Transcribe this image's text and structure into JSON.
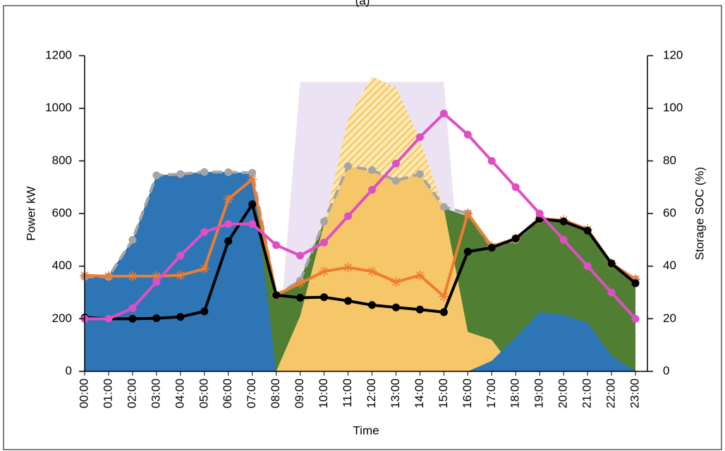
{
  "chart_data": {
    "type": "combo",
    "title": "(a)",
    "x_label": "Time",
    "y_label": "Power kW",
    "y2_label": "Storage SOC (%)",
    "categories": [
      "00:00",
      "01:00",
      "02:00",
      "03:00",
      "04:00",
      "05:00",
      "06:00",
      "07:00",
      "08:00",
      "09:00",
      "10:00",
      "11:00",
      "12:00",
      "13:00",
      "14:00",
      "15:00",
      "16:00",
      "17:00",
      "18:00",
      "19:00",
      "20:00",
      "21:00",
      "22:00",
      "23:00"
    ],
    "ylim": [
      0,
      1200
    ],
    "yticks": [
      0,
      200,
      400,
      600,
      800,
      1000,
      1200
    ],
    "y2lim": [
      0,
      120
    ],
    "y2ticks": [
      0,
      20,
      40,
      60,
      80,
      100,
      120
    ],
    "series": [
      {
        "type": "area",
        "color": "#ebe3f3",
        "values": [
          null,
          null,
          null,
          null,
          null,
          null,
          null,
          null,
          0,
          1100,
          1100,
          1100,
          1100,
          1100,
          1100,
          1100,
          0,
          null,
          null,
          null,
          null,
          null,
          null,
          null
        ]
      },
      {
        "type": "area",
        "color": "#507e32",
        "values": [
          360,
          360,
          500,
          745,
          750,
          758,
          757,
          750,
          290,
          350,
          570,
          780,
          765,
          725,
          750,
          620,
          590,
          470,
          500,
          580,
          570,
          540,
          410,
          350
        ]
      },
      {
        "type": "area",
        "color": "#f4b942",
        "pattern": true,
        "values": [
          null,
          null,
          null,
          null,
          null,
          null,
          null,
          null,
          0,
          210,
          560,
          960,
          1120,
          1080,
          880,
          620,
          null,
          null,
          null,
          null,
          null,
          null,
          null,
          null
        ]
      },
      {
        "type": "area",
        "color": "#f5c768",
        "values": [
          null,
          null,
          null,
          null,
          null,
          null,
          null,
          null,
          0,
          210,
          560,
          780,
          765,
          725,
          750,
          620,
          150,
          120,
          0,
          null,
          null,
          null,
          null,
          null
        ]
      },
      {
        "type": "area",
        "color": "#2e75b6",
        "values": [
          365,
          365,
          500,
          745,
          750,
          758,
          757,
          755,
          0,
          null,
          null,
          null,
          null,
          null,
          null,
          null,
          0,
          40,
          130,
          225,
          215,
          185,
          60,
          0
        ]
      },
      {
        "type": "line",
        "color": "#a5a5a5",
        "dash": true,
        "marker": "circle",
        "values": [
          360,
          360,
          500,
          745,
          750,
          758,
          757,
          755,
          290,
          345,
          570,
          780,
          765,
          725,
          750,
          625,
          600,
          470,
          500,
          580,
          570,
          535,
          410,
          350
        ]
      },
      {
        "type": "line",
        "color": "#ed7d31",
        "marker": "star",
        "values": [
          365,
          362,
          362,
          362,
          365,
          390,
          655,
          730,
          290,
          335,
          380,
          395,
          380,
          340,
          365,
          285,
          600,
          475,
          505,
          580,
          575,
          540,
          410,
          350
        ]
      },
      {
        "type": "line",
        "color": "#000000",
        "marker": "circle",
        "values": [
          205,
          200,
          200,
          202,
          207,
          228,
          495,
          635,
          290,
          280,
          282,
          268,
          252,
          243,
          235,
          225,
          455,
          470,
          505,
          580,
          570,
          535,
          410,
          335
        ]
      },
      {
        "type": "line",
        "color": "#df4fc4",
        "marker": "circle",
        "axis": "y2",
        "values": [
          20,
          20,
          24,
          34,
          44,
          53,
          56,
          56,
          48,
          44,
          49,
          59,
          69,
          79,
          89,
          98,
          90,
          80,
          70,
          60,
          50,
          40,
          30,
          20
        ]
      }
    ]
  }
}
